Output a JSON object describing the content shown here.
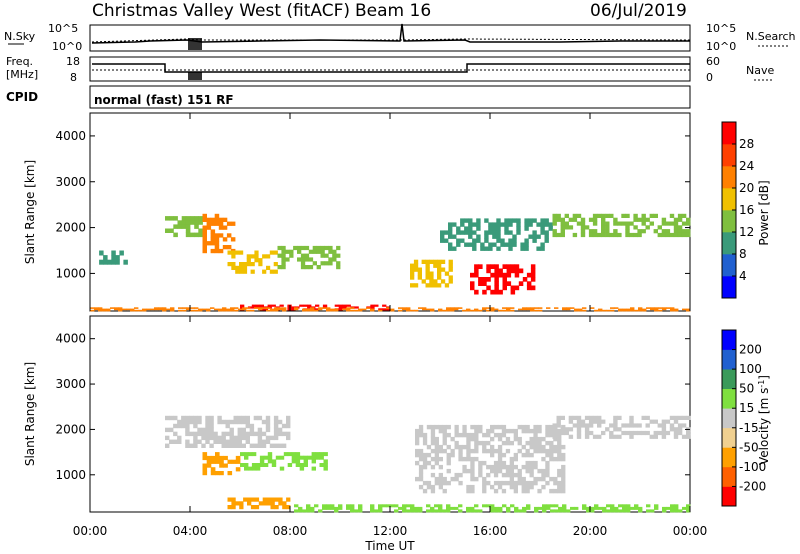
{
  "header": {
    "station_title": "Christmas Valley West (fitACF)",
    "beam": "Beam 16",
    "date": "06/Jul/2019"
  },
  "strip_sky": {
    "label": "N.Sky",
    "right_label": "N.Search",
    "left_ticks": [
      "10^5",
      "10^0"
    ],
    "right_ticks": [
      "10^5",
      "10^0"
    ]
  },
  "strip_freq": {
    "label_top": "Freq.",
    "label_bottom": "[MHz]",
    "right_label": "Nave",
    "left_ticks": [
      "18",
      "8"
    ],
    "right_ticks": [
      "60",
      "0"
    ]
  },
  "cpid": {
    "label": "CPID",
    "mode": "normal (fast) 151 RF"
  },
  "panel_power": {
    "ylabel": "Slant Range [km]",
    "yticks": [
      "1000",
      "2000",
      "3000",
      "4000"
    ],
    "colorbar_label": "Power [dB]",
    "colorbar_ticks": [
      "4",
      "8",
      "12",
      "16",
      "20",
      "24",
      "28"
    ],
    "colorbar_colors": [
      "#0000ff",
      "#2060d0",
      "#3a9a7a",
      "#7fbf3f",
      "#f0c000",
      "#ff8000",
      "#ff4000",
      "#ff0000"
    ]
  },
  "panel_velocity": {
    "ylabel": "Slant Range [km]",
    "yticks": [
      "1000",
      "2000",
      "3000",
      "4000"
    ],
    "colorbar_label": "Velocity [m s",
    "colorbar_label_sup": "-1",
    "colorbar_label_end": "]",
    "colorbar_ticks": [
      "-200",
      "-100",
      "-50",
      "-15",
      "15",
      "50",
      "100",
      "200"
    ],
    "colorbar_colors": [
      "#ff0000",
      "#ff6000",
      "#ffa000",
      "#f0d090",
      "#c8c8c8",
      "#7fdf3f",
      "#3a9a5a",
      "#2060d0",
      "#0000ff"
    ]
  },
  "x_axis": {
    "label": "Time UT",
    "ticks": [
      "00:00",
      "04:00",
      "08:00",
      "12:00",
      "16:00",
      "20:00",
      "00:00"
    ]
  },
  "chart_data": [
    {
      "type": "heatmap",
      "title": "Power",
      "x_range_hours": [
        0,
        24
      ],
      "y_range_km": [
        180,
        4500
      ],
      "ylabel": "Slant Range [km]",
      "colorbar_range_db": [
        0,
        30
      ],
      "regions": [
        {
          "t0": 3.0,
          "t1": 4.5,
          "r0": 1800,
          "r1": 2250,
          "value": 12
        },
        {
          "t0": 4.5,
          "t1": 5.8,
          "r0": 1450,
          "r1": 2300,
          "value": 22
        },
        {
          "t0": 5.5,
          "t1": 7.5,
          "r0": 1000,
          "r1": 1500,
          "value": 18
        },
        {
          "t0": 7.5,
          "t1": 10.0,
          "r0": 1100,
          "r1": 1600,
          "value": 12
        },
        {
          "t0": 0.2,
          "t1": 1.5,
          "r0": 1200,
          "r1": 1500,
          "value": 8
        },
        {
          "t0": 12.8,
          "t1": 14.5,
          "r0": 700,
          "r1": 1300,
          "value": 16
        },
        {
          "t0": 15.2,
          "t1": 17.8,
          "r0": 550,
          "r1": 1200,
          "value": 28
        },
        {
          "t0": 14.0,
          "t1": 18.5,
          "r0": 1500,
          "r1": 2200,
          "value": 10
        },
        {
          "t0": 18.5,
          "t1": 24.0,
          "r0": 1800,
          "r1": 2300,
          "value": 12
        },
        {
          "t0": 6.0,
          "t1": 12.0,
          "r0": 200,
          "r1": 320,
          "value": 28
        },
        {
          "t0": 0.0,
          "t1": 24.0,
          "r0": 180,
          "r1": 260,
          "value": 20
        }
      ]
    },
    {
      "type": "heatmap",
      "title": "Velocity",
      "x_range_hours": [
        0,
        24
      ],
      "y_range_km": [
        180,
        4500
      ],
      "ylabel": "Slant Range [km]",
      "colorbar_range_ms": [
        -250,
        250
      ],
      "regions": [
        {
          "t0": 3.0,
          "t1": 8.0,
          "r0": 1600,
          "r1": 2300,
          "value": 0
        },
        {
          "t0": 4.5,
          "t1": 6.0,
          "r0": 1000,
          "r1": 1500,
          "value": -80
        },
        {
          "t0": 6.0,
          "t1": 9.5,
          "r0": 1100,
          "r1": 1500,
          "value": 30
        },
        {
          "t0": 5.5,
          "t1": 8.0,
          "r0": 250,
          "r1": 500,
          "value": -80
        },
        {
          "t0": 8.0,
          "t1": 24.0,
          "r0": 180,
          "r1": 350,
          "value": 30
        },
        {
          "t0": 13.0,
          "t1": 19.0,
          "r0": 600,
          "r1": 2100,
          "value": 0
        },
        {
          "t0": 18.5,
          "t1": 24.0,
          "r0": 1800,
          "r1": 2300,
          "value": 0
        }
      ]
    }
  ]
}
